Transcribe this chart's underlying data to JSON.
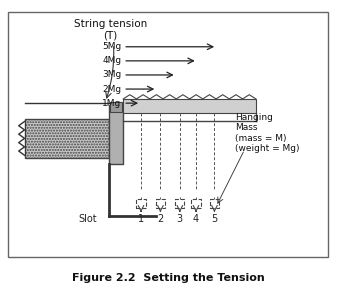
{
  "title": "Figure 2.2  Setting the Tension",
  "string_tension_label": "String tension\n(T)",
  "hanging_mass_label": "Hanging\nMass\n(mass = M)\n(weight = Mg)",
  "slot_label": "Slot",
  "mg_labels": [
    "1Mg",
    "2Mg",
    "3Mg",
    "4Mg",
    "5Mg"
  ],
  "slot_numbers": [
    "1",
    "2",
    "3",
    "4",
    "5"
  ],
  "bg_color": "#f5f5f5",
  "fig_width": 3.37,
  "fig_height": 2.95
}
